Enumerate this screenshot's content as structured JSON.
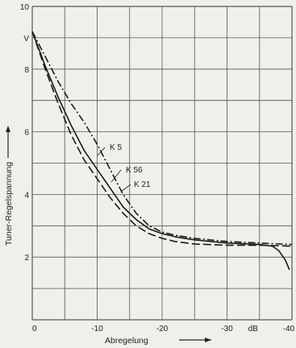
{
  "chart_data": {
    "type": "line",
    "title": "",
    "xlabel": "Abregelung",
    "ylabel": "Tuner-Regelspannung",
    "x_unit": "dB",
    "y_unit": "V",
    "xlim": [
      0,
      -40
    ],
    "ylim": [
      0,
      10
    ],
    "grid": true,
    "x_ticks": [
      "0",
      "-10",
      "-20",
      "-30",
      "-40"
    ],
    "y_ticks": [
      "2",
      "4",
      "6",
      "8",
      "10"
    ],
    "series": [
      {
        "name": "K 5",
        "dash": "dashdot",
        "points": [
          [
            0,
            9.2
          ],
          [
            -2,
            8.4
          ],
          [
            -4,
            7.6
          ],
          [
            -6,
            6.9
          ],
          [
            -8,
            6.3
          ],
          [
            -10,
            5.6
          ],
          [
            -12,
            4.8
          ],
          [
            -14,
            4.0
          ],
          [
            -16,
            3.4
          ],
          [
            -18,
            3.0
          ],
          [
            -20,
            2.8
          ],
          [
            -22,
            2.7
          ],
          [
            -25,
            2.6
          ],
          [
            -30,
            2.5
          ],
          [
            -35,
            2.45
          ],
          [
            -40,
            2.4
          ]
        ]
      },
      {
        "name": "K 56",
        "dash": "solid",
        "points": [
          [
            0,
            9.2
          ],
          [
            -2,
            8.1
          ],
          [
            -4,
            7.1
          ],
          [
            -6,
            6.2
          ],
          [
            -8,
            5.4
          ],
          [
            -10,
            4.8
          ],
          [
            -12,
            4.2
          ],
          [
            -14,
            3.6
          ],
          [
            -16,
            3.2
          ],
          [
            -18,
            2.9
          ],
          [
            -20,
            2.75
          ],
          [
            -22,
            2.65
          ],
          [
            -25,
            2.55
          ],
          [
            -30,
            2.45
          ],
          [
            -35,
            2.4
          ],
          [
            -37,
            2.35
          ],
          [
            -38,
            2.2
          ],
          [
            -39,
            1.9
          ],
          [
            -39.6,
            1.6
          ]
        ]
      },
      {
        "name": "K 21",
        "dash": "longdash",
        "points": [
          [
            0,
            9.2
          ],
          [
            -2,
            8.0
          ],
          [
            -4,
            6.9
          ],
          [
            -6,
            5.9
          ],
          [
            -8,
            5.1
          ],
          [
            -10,
            4.5
          ],
          [
            -12,
            3.9
          ],
          [
            -14,
            3.4
          ],
          [
            -16,
            3.0
          ],
          [
            -18,
            2.75
          ],
          [
            -20,
            2.6
          ],
          [
            -22,
            2.5
          ],
          [
            -25,
            2.42
          ],
          [
            -30,
            2.38
          ],
          [
            -35,
            2.38
          ],
          [
            -40,
            2.35
          ]
        ]
      }
    ]
  }
}
